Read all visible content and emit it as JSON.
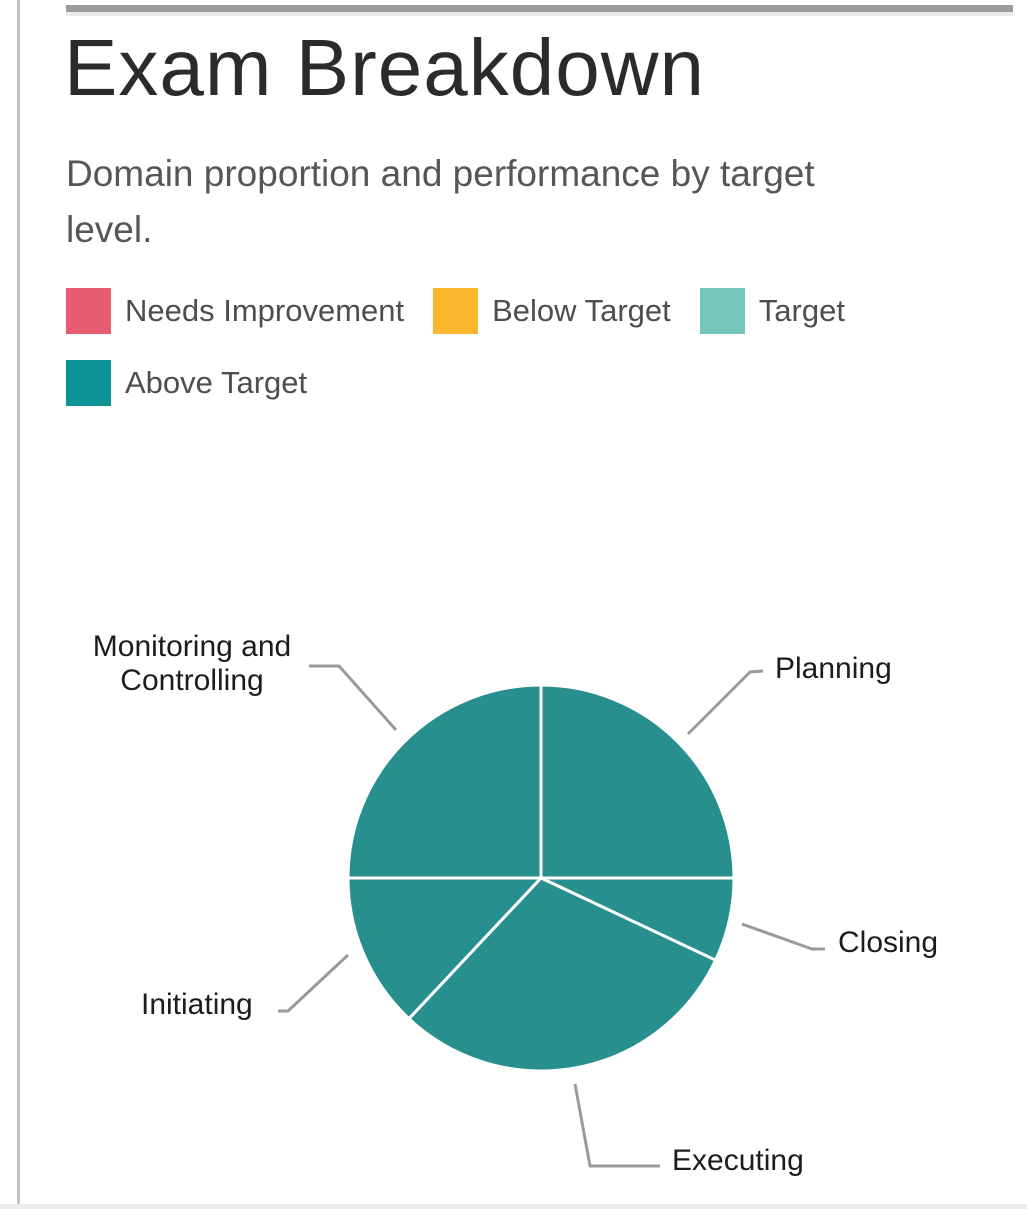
{
  "chart_data": {
    "type": "pie",
    "title": "Exam Breakdown",
    "subtitle": "Domain proportion and performance by target level.",
    "legend_position": "top-left",
    "legend": [
      {
        "label": "Needs Improvement",
        "color": "#e85c72"
      },
      {
        "label": "Below Target",
        "color": "#fab62d"
      },
      {
        "label": "Target",
        "color": "#74c6bb"
      },
      {
        "label": "Above Target",
        "color": "#0c9396"
      }
    ],
    "unit": "percent_of_exam",
    "start_angle_deg": 90,
    "direction": "clockwise",
    "slice_border_color": "#ffffff",
    "leader_line_color": "#9a9a9a",
    "slices": [
      {
        "label": "Planning",
        "value": 25,
        "level": "Above Target",
        "color": "#278f8d"
      },
      {
        "label": "Closing",
        "value": 7,
        "level": "Above Target",
        "color": "#278f8d"
      },
      {
        "label": "Executing",
        "value": 30,
        "level": "Above Target",
        "color": "#278f8d"
      },
      {
        "label": "Initiating",
        "value": 13,
        "level": "Above Target",
        "color": "#278f8d"
      },
      {
        "label": "Monitoring and Controlling",
        "value": 25,
        "level": "Above Target",
        "color": "#278f8d"
      }
    ]
  }
}
